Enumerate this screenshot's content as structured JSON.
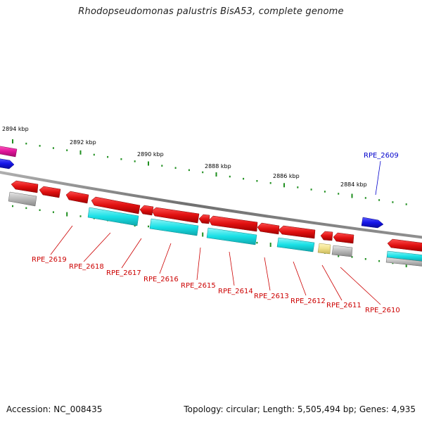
{
  "title": "Rhodopseudomonas palustris BisA53, complete genome",
  "footer": {
    "accession": "Accession: NC_008435",
    "topology": "Topology: circular; Length: 5,505,494 bp; Genes: 4,935"
  },
  "colors": {
    "backbone": "#808080",
    "cds_forward": "#1515e8",
    "cds_reverse": "#e01010",
    "rna_cyan": "#19e0e6",
    "gray_feature": "#b8b8b8",
    "yellow_feature": "#f0e08a",
    "magenta_feature": "#e0149a",
    "tick_green": "#1f8f1f",
    "label_red": "#cc0000",
    "label_blue": "#0000cc"
  },
  "ticks": [
    {
      "label": "2894 kbp"
    },
    {
      "label": "2892 kbp"
    },
    {
      "label": "2890 kbp"
    },
    {
      "label": "2888 kbp"
    },
    {
      "label": "2886 kbp"
    },
    {
      "label": "2884 kbp"
    }
  ],
  "genes": [
    {
      "label": "RPE_2609",
      "strand": "forward"
    },
    {
      "label": "RPE_2610",
      "strand": "reverse"
    },
    {
      "label": "RPE_2611",
      "strand": "reverse"
    },
    {
      "label": "RPE_2612",
      "strand": "reverse"
    },
    {
      "label": "RPE_2613",
      "strand": "reverse"
    },
    {
      "label": "RPE_2614",
      "strand": "reverse"
    },
    {
      "label": "RPE_2615",
      "strand": "reverse"
    },
    {
      "label": "RPE_2616",
      "strand": "reverse"
    },
    {
      "label": "RPE_2617",
      "strand": "reverse"
    },
    {
      "label": "RPE_2618",
      "strand": "reverse"
    },
    {
      "label": "RPE_2619",
      "strand": "reverse"
    }
  ]
}
